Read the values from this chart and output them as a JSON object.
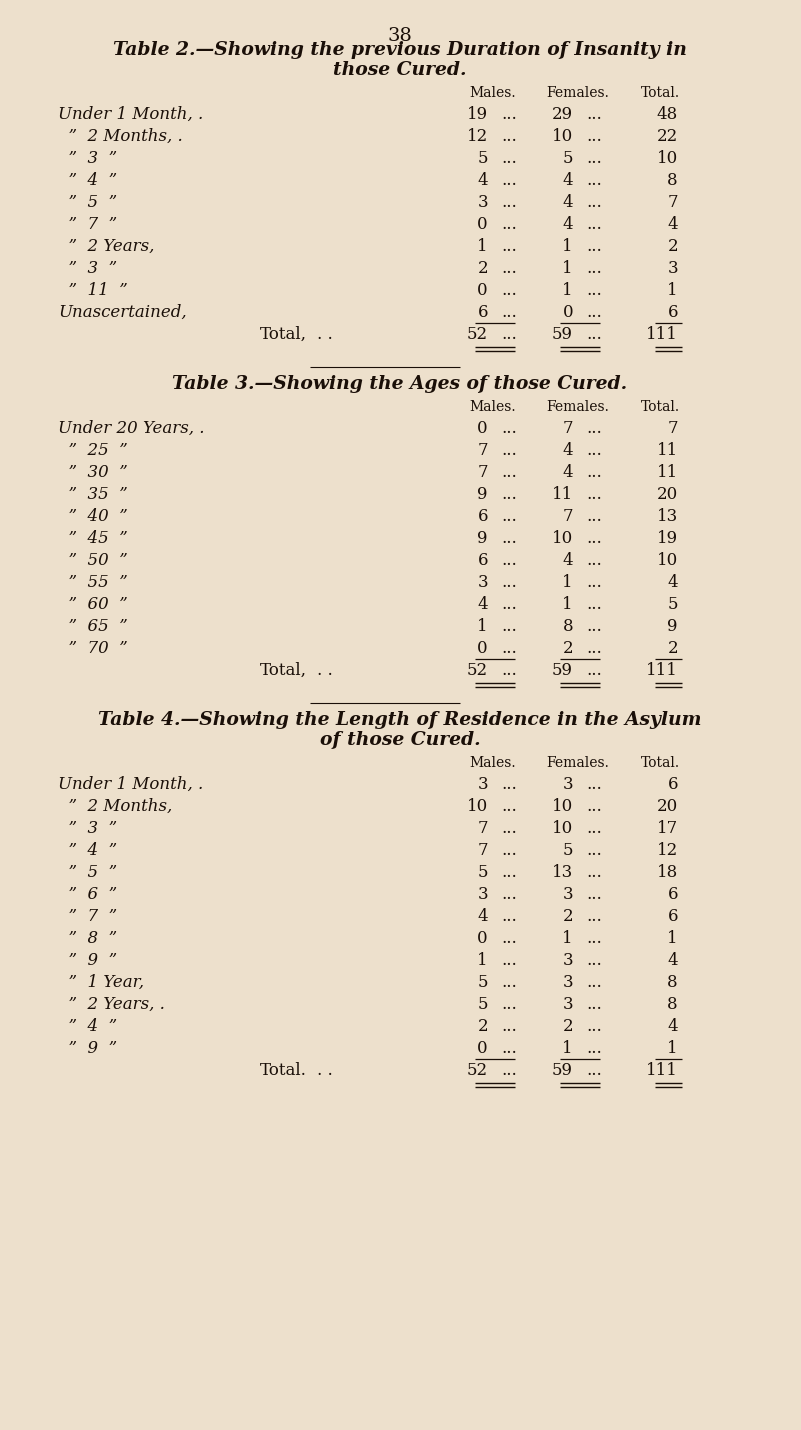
{
  "bg_color": "#ede0cc",
  "text_color": "#1a0f08",
  "page_number": "38",
  "table2": {
    "title_line1": "Table 2.—Showing the previous Duration of Insanity in",
    "title_line2": "those Cured.",
    "rows": [
      {
        "label": "Under 1 Month, .",
        "dots": ". . . . .",
        "males": "19",
        "females": "29",
        "total": "48"
      },
      {
        "label": "  ”  2 Months, .",
        "dots": ". . . . .",
        "males": "12",
        "females": "10",
        "total": "22"
      },
      {
        "label": "  ”  3  ”",
        "dots": ". . . . .",
        "males": "5",
        "females": "5",
        "total": "10"
      },
      {
        "label": "  ”  4  ”",
        "dots": ". . . . .",
        "males": "4",
        "females": "4",
        "total": "8"
      },
      {
        "label": "  ”  5  ”",
        "dots": ". . . . .",
        "males": "3",
        "females": "4",
        "total": "7"
      },
      {
        "label": "  ”  7  ”",
        "dots": ". . . . .",
        "males": "0",
        "females": "4",
        "total": "4"
      },
      {
        "label": "  ”  2 Years,",
        "dots": ". . . . .",
        "males": "1",
        "females": "1",
        "total": "2"
      },
      {
        "label": "  ”  3  ”",
        "dots": ". . . . .",
        "males": "2",
        "females": "1",
        "total": "3"
      },
      {
        "label": "  ”  11  ”",
        "dots": ". . . . .",
        "males": "0",
        "females": "1",
        "total": "1"
      },
      {
        "label": "Unascertained,",
        "dots": ". . . . .",
        "males": "6",
        "females": "0",
        "total": "6"
      }
    ],
    "total_label": "Total,",
    "total_dots": ". .",
    "total_males": "52",
    "total_females": "59",
    "total_total": "111"
  },
  "table3": {
    "title_line1": "Table 3.—Showing the Ages of those Cured.",
    "rows": [
      {
        "label": "Under 20 Years, .",
        "dots": ". . . . .",
        "males": "0",
        "females": "7",
        "total": "7"
      },
      {
        "label": "  ”  25  ”",
        "dots": ". . . . .",
        "males": "7",
        "females": "4",
        "total": "11"
      },
      {
        "label": "  ”  30  ”",
        "dots": ". . . . .",
        "males": "7",
        "females": "4",
        "total": "11"
      },
      {
        "label": "  ”  35  ”",
        "dots": ". . . . .",
        "males": "9",
        "females": "11",
        "total": "20"
      },
      {
        "label": "  ”  40  ”",
        "dots": ". . . . .",
        "males": "6",
        "females": "7",
        "total": "13"
      },
      {
        "label": "  ”  45  ”",
        "dots": ". . . . .",
        "males": "9",
        "females": "10",
        "total": "19"
      },
      {
        "label": "  ”  50  ”",
        "dots": ". . . . .",
        "males": "6",
        "females": "4",
        "total": "10"
      },
      {
        "label": "  ”  55  ”",
        "dots": ". . . . .",
        "males": "3",
        "females": "1",
        "total": "4"
      },
      {
        "label": "  ”  60  ”",
        "dots": ". . . . .",
        "males": "4",
        "females": "1",
        "total": "5"
      },
      {
        "label": "  ”  65  ”",
        "dots": ". . . . .",
        "males": "1",
        "females": "8",
        "total": "9"
      },
      {
        "label": "  ”  70  ”",
        "dots": ". . . . .",
        "males": "0",
        "females": "2",
        "total": "2"
      }
    ],
    "total_label": "Total,",
    "total_dots": ". .",
    "total_males": "52",
    "total_females": "59",
    "total_total": "111"
  },
  "table4": {
    "title_line1": "Table 4.—Showing the Length of Residence in the Asylum",
    "title_line2": "of those Cured.",
    "rows": [
      {
        "label": "Under 1 Month, .",
        "dots": ". . . . .",
        "males": "3",
        "females": "3",
        "total": "6"
      },
      {
        "label": "  ”  2 Months,",
        "dots": ". . . . .",
        "males": "10",
        "females": "10",
        "total": "20"
      },
      {
        "label": "  ”  3  ”",
        "dots": ". . . . .",
        "males": "7",
        "females": "10",
        "total": "17"
      },
      {
        "label": "  ”  4  ”",
        "dots": ". . . . .",
        "males": "7",
        "females": "5",
        "total": "12"
      },
      {
        "label": "  ”  5  ”",
        "dots": ". . . . .",
        "males": "5",
        "females": "13",
        "total": "18"
      },
      {
        "label": "  ”  6  ”",
        "dots": ". . . . .",
        "males": "3",
        "females": "3",
        "total": "6"
      },
      {
        "label": "  ”  7  ”",
        "dots": ". . . . .",
        "males": "4",
        "females": "2",
        "total": "6"
      },
      {
        "label": "  ”  8  ”",
        "dots": ". . . . .",
        "males": "0",
        "females": "1",
        "total": "1"
      },
      {
        "label": "  ”  9  ”",
        "dots": ". . . . .",
        "males": "1",
        "females": "3",
        "total": "4"
      },
      {
        "label": "  ”  1 Year,",
        "dots": ". . . . .",
        "males": "5",
        "females": "3",
        "total": "8"
      },
      {
        "label": "  ”  2 Years, .",
        "dots": ". . . . .",
        "males": "5",
        "females": "3",
        "total": "8"
      },
      {
        "label": "  ”  4  ”",
        "dots": ". . . . .",
        "males": "2",
        "females": "2",
        "total": "4"
      },
      {
        "label": "  ”  9  ”",
        "dots": ". . . . .",
        "males": "0",
        "females": "1",
        "total": "1"
      }
    ],
    "total_label": "Total.",
    "total_dots": ". .",
    "total_males": "52",
    "total_females": "59",
    "total_total": "111"
  }
}
